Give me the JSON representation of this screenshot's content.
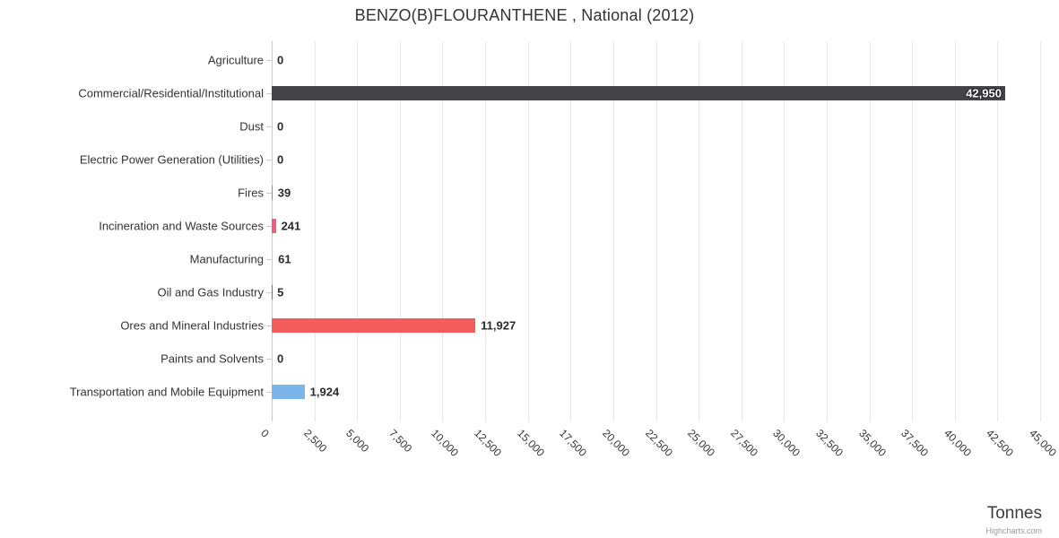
{
  "title": "BENZO(B)FLOURANTHENE , National (2012)",
  "axis_title": "Tonnes",
  "credits": "Highcharts.com",
  "chart_data": {
    "type": "bar",
    "orientation": "horizontal",
    "title": "BENZO(B)FLOURANTHENE , National (2012)",
    "xlabel": "Tonnes",
    "ylabel": "",
    "xlim": [
      0,
      45000
    ],
    "tick_interval": 2500,
    "grid": true,
    "legend": "none",
    "categories": [
      "Agriculture",
      "Commercial/Residential/Institutional",
      "Dust",
      "Electric Power Generation (Utilities)",
      "Fires",
      "Incineration and Waste Sources",
      "Manufacturing",
      "Oil and Gas Industry",
      "Ores and Mineral Industries",
      "Paints and Solvents",
      "Transportation and Mobile Equipment"
    ],
    "values": [
      0,
      42950,
      0,
      0,
      39,
      241,
      61,
      5,
      11927,
      0,
      1924
    ],
    "value_labels": [
      "0",
      "42,950",
      "0",
      "0",
      "39",
      "241",
      "61",
      "5",
      "11,927",
      "0",
      "1,924"
    ],
    "bar_colors": [
      "#7cb5ec",
      "#434348",
      "#90ed7d",
      "#f7a35c",
      "#8085e9",
      "#f15c80",
      "#e4d354",
      "#2b908f",
      "#f45b5b",
      "#91e8e1",
      "#7cb5ec"
    ],
    "x_tick_labels": [
      "0",
      "2,500",
      "5,000",
      "7,500",
      "10,000",
      "12,500",
      "15,000",
      "17,500",
      "20,000",
      "22,500",
      "25,000",
      "27,500",
      "30,000",
      "32,500",
      "35,000",
      "37,500",
      "40,000",
      "42,500",
      "45,000"
    ]
  }
}
